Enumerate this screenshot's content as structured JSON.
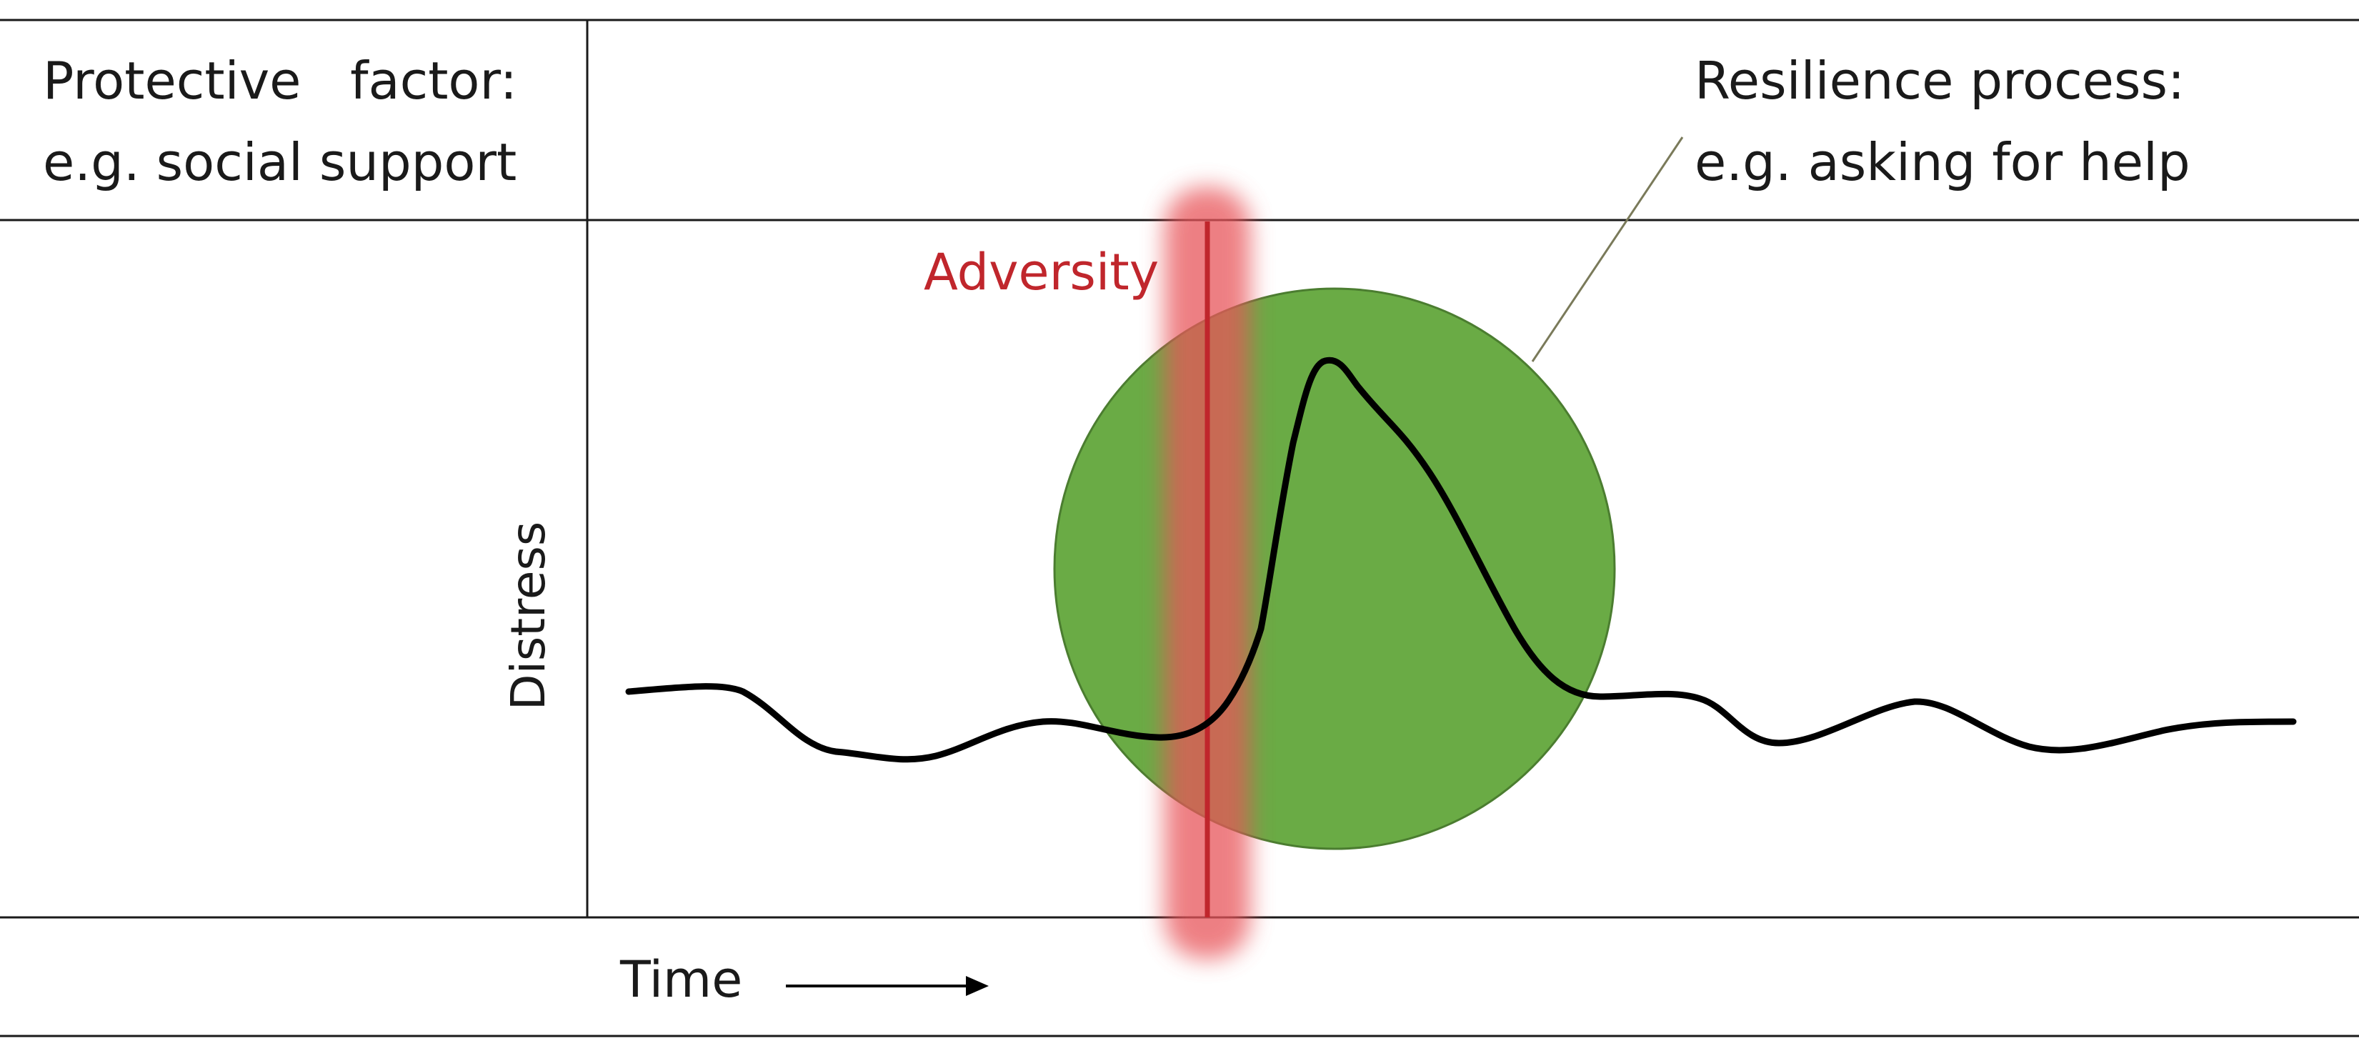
{
  "protective_factor": {
    "line1": "Protective   factor:",
    "line2": "e.g. social support"
  },
  "resilience_process": {
    "line1": "Resilience process:",
    "line2": "e.g. asking for help"
  },
  "adversity_label": "Adversity",
  "y_axis_label": "Distress",
  "x_axis_label": "Time",
  "colors": {
    "adversity": "#c0262c",
    "adversity_glow": "#e8545a",
    "resilience_circle": "#6aab45",
    "resilience_circle_stroke": "#4b7d30",
    "distress_line": "#000000",
    "rule": "#1a1a1a",
    "pointer_line": "#7a7a5a"
  }
}
